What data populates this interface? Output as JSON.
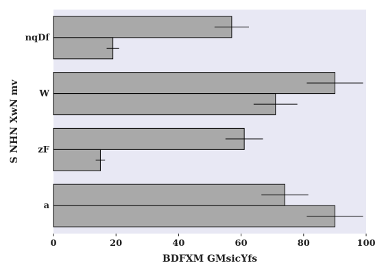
{
  "chart_data": {
    "type": "bar",
    "orientation": "horizontal",
    "categories": [
      "a",
      "zF",
      "W",
      "nqDf"
    ],
    "series": [
      {
        "values": [
          74,
          61,
          90,
          57
        ],
        "errors": [
          7.5,
          6,
          9,
          5.5
        ]
      },
      {
        "values": [
          90,
          15,
          71,
          19
        ],
        "errors": [
          9,
          1.5,
          7,
          2
        ]
      }
    ],
    "xlabel": "BDFXM GMsicYfs",
    "ylabel": "S NHN XwN mv",
    "xlim": [
      0,
      100
    ],
    "xticks": [
      0,
      20,
      40,
      60,
      80,
      100
    ],
    "grid": false,
    "colors": {
      "bar": "#a9a9a9",
      "plot_bg": "#e8e8f4",
      "edge": "#000000"
    }
  }
}
